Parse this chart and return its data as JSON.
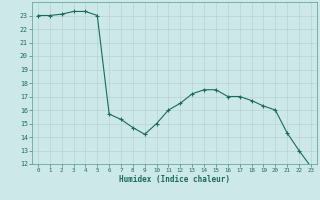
{
  "x": [
    0,
    1,
    2,
    3,
    4,
    5,
    6,
    7,
    8,
    9,
    10,
    11,
    12,
    13,
    14,
    15,
    16,
    17,
    18,
    19,
    20,
    21,
    22,
    23
  ],
  "y": [
    23.0,
    23.0,
    23.1,
    23.3,
    23.3,
    23.0,
    15.7,
    15.3,
    14.7,
    14.2,
    15.0,
    16.0,
    16.5,
    17.2,
    17.5,
    17.5,
    17.0,
    17.0,
    16.7,
    16.3,
    16.0,
    14.3,
    13.0,
    11.8
  ],
  "xlabel": "Humidex (Indice chaleur)",
  "ylim": [
    12,
    24
  ],
  "xlim": [
    -0.5,
    23.5
  ],
  "yticks": [
    12,
    13,
    14,
    15,
    16,
    17,
    18,
    19,
    20,
    21,
    22,
    23
  ],
  "xticks": [
    0,
    1,
    2,
    3,
    4,
    5,
    6,
    7,
    8,
    9,
    10,
    11,
    12,
    13,
    14,
    15,
    16,
    17,
    18,
    19,
    20,
    21,
    22,
    23
  ],
  "line_color": "#1a6b5a",
  "marker_color": "#1a6b5a",
  "bg_color": "#cce8e8",
  "grid_color": "#b0cfcf",
  "tick_label_color": "#1a6b5a",
  "xlabel_color": "#1a6b5a",
  "spine_color": "#5a9a8a"
}
